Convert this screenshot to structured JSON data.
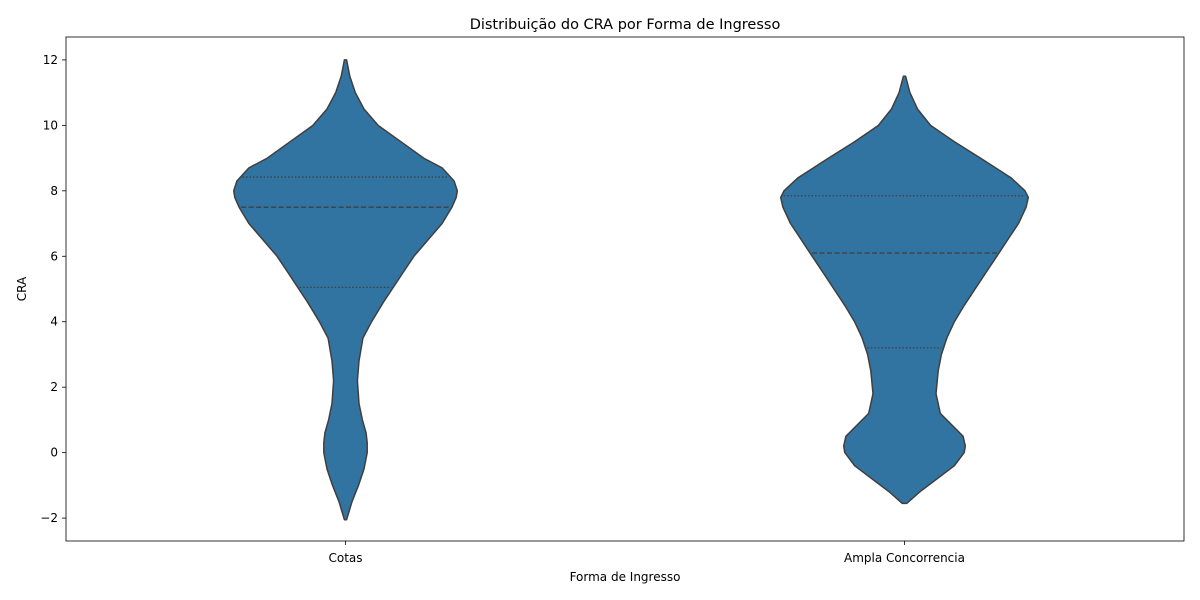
{
  "chart_data": {
    "type": "violin",
    "title": "Distribuição do CRA por Forma de Ingresso",
    "xlabel": "Forma de Ingresso",
    "ylabel": "CRA",
    "categories": [
      "Cotas",
      "Ampla Concorrencia"
    ],
    "ylim": [
      -2.7,
      12.7
    ],
    "yticks": [
      -2,
      0,
      2,
      4,
      6,
      8,
      10,
      12
    ],
    "ytick_labels": [
      "−2",
      "0",
      "2",
      "4",
      "6",
      "8",
      "10",
      "12"
    ],
    "grid": false,
    "fill_color": "#3274a1",
    "edge_color": "#3f3f3f",
    "violins": [
      {
        "category": "Cotas",
        "min": -2.05,
        "max": 12.0,
        "quartiles": {
          "q1": 5.05,
          "median": 7.5,
          "q3": 8.42
        },
        "density_profile": [
          [
            -2.05,
            0.05
          ],
          [
            -1.5,
            0.3
          ],
          [
            -1.0,
            0.6
          ],
          [
            -0.5,
            0.85
          ],
          [
            0.0,
            1.0
          ],
          [
            0.3,
            1.0
          ],
          [
            0.6,
            0.95
          ],
          [
            1.0,
            0.78
          ],
          [
            1.5,
            0.62
          ],
          [
            2.2,
            0.55
          ],
          [
            2.8,
            0.62
          ],
          [
            3.5,
            0.8
          ],
          [
            4.0,
            1.2
          ],
          [
            4.6,
            1.75
          ],
          [
            5.0,
            2.15
          ],
          [
            5.5,
            2.65
          ],
          [
            6.0,
            3.15
          ],
          [
            6.5,
            3.8
          ],
          [
            7.0,
            4.45
          ],
          [
            7.5,
            4.9
          ],
          [
            7.8,
            5.1
          ],
          [
            8.0,
            5.15
          ],
          [
            8.3,
            5.0
          ],
          [
            8.7,
            4.45
          ],
          [
            9.0,
            3.6
          ],
          [
            9.5,
            2.55
          ],
          [
            10.0,
            1.5
          ],
          [
            10.5,
            0.85
          ],
          [
            11.0,
            0.45
          ],
          [
            11.5,
            0.2
          ],
          [
            12.0,
            0.05
          ]
        ]
      },
      {
        "category": "Ampla Concorrencia",
        "min": -1.55,
        "max": 11.5,
        "quartiles": {
          "q1": 3.2,
          "median": 6.1,
          "q3": 7.85
        },
        "density_profile": [
          [
            -1.55,
            0.1
          ],
          [
            -1.2,
            0.7
          ],
          [
            -0.8,
            1.5
          ],
          [
            -0.4,
            2.3
          ],
          [
            0.0,
            2.75
          ],
          [
            0.2,
            2.8
          ],
          [
            0.5,
            2.7
          ],
          [
            0.8,
            2.25
          ],
          [
            1.2,
            1.65
          ],
          [
            1.8,
            1.45
          ],
          [
            2.5,
            1.55
          ],
          [
            3.0,
            1.7
          ],
          [
            3.5,
            1.95
          ],
          [
            4.0,
            2.3
          ],
          [
            4.5,
            2.75
          ],
          [
            5.0,
            3.25
          ],
          [
            5.5,
            3.75
          ],
          [
            6.0,
            4.25
          ],
          [
            6.5,
            4.75
          ],
          [
            7.0,
            5.25
          ],
          [
            7.5,
            5.6
          ],
          [
            7.8,
            5.7
          ],
          [
            8.0,
            5.55
          ],
          [
            8.4,
            4.9
          ],
          [
            9.0,
            3.5
          ],
          [
            9.5,
            2.3
          ],
          [
            10.0,
            1.2
          ],
          [
            10.5,
            0.6
          ],
          [
            11.0,
            0.25
          ],
          [
            11.5,
            0.05
          ]
        ]
      }
    ]
  }
}
